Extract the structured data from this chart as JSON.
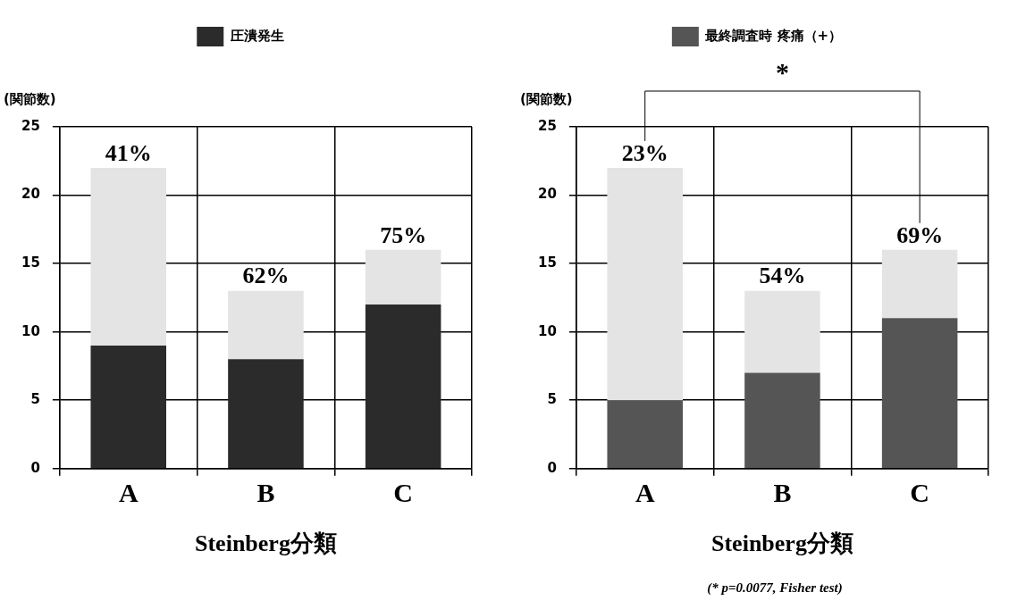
{
  "chart_data": [
    {
      "type": "bar",
      "stacked": true,
      "ylabel": "(関節数)",
      "xlabel": "Steinberg分類",
      "categories": [
        "A",
        "B",
        "C"
      ],
      "series": [
        {
          "name": "圧潰発生",
          "color": "#2b2b2b",
          "values": [
            9,
            8,
            12
          ]
        },
        {
          "color": "#e4e4e4",
          "values": [
            13,
            5,
            4
          ]
        }
      ],
      "ylim": [
        0,
        25
      ],
      "yticks": [
        0,
        5,
        10,
        15,
        20,
        25
      ],
      "grid": true,
      "legend": "top",
      "annotations": [
        {
          "text": "41%",
          "x": "A",
          "y": 22
        },
        {
          "text": "62%",
          "x": "B",
          "y": 13
        },
        {
          "text": "75%",
          "x": "C",
          "y": 16
        }
      ]
    },
    {
      "type": "bar",
      "stacked": true,
      "ylabel": "(関節数)",
      "xlabel": "Steinberg分類",
      "categories": [
        "A",
        "B",
        "C"
      ],
      "series": [
        {
          "name": "最終調査時 疼痛（+）",
          "color": "#555555",
          "values": [
            5,
            7,
            11
          ]
        },
        {
          "color": "#e4e4e4",
          "values": [
            17,
            6,
            5
          ]
        }
      ],
      "ylim": [
        0,
        25
      ],
      "yticks": [
        0,
        5,
        10,
        15,
        20,
        25
      ],
      "grid": true,
      "legend": "top",
      "annotations": [
        {
          "text": "23%",
          "x": "A",
          "y": 22
        },
        {
          "text": "54%",
          "x": "B",
          "y": 13
        },
        {
          "text": "69%",
          "x": "C",
          "y": 16
        },
        "*",
        "(* p=0.0077, Fisher test)"
      ]
    }
  ]
}
